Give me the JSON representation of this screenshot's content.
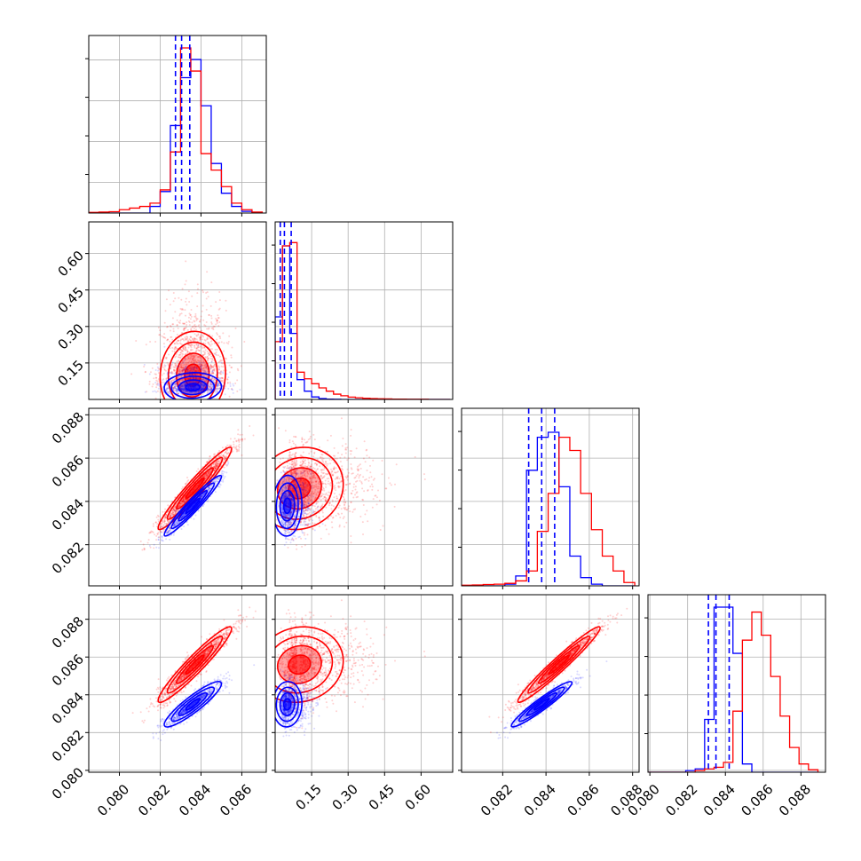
{
  "figure": {
    "description_colors": {
      "primary": "#ff0000",
      "secondary": "#0000ff",
      "grid": "#b0b0b0"
    }
  },
  "chart_data": {
    "type": "corner",
    "series": [
      {
        "name": "",
        "color": "#ff0000"
      },
      {
        "name": "",
        "color": "#0000ff"
      }
    ],
    "parameters": [
      {
        "index": 0,
        "range": [
          0.0785,
          0.0872
        ],
        "ticks": [
          "0.080",
          "0.082",
          "0.084",
          "0.086"
        ],
        "hist": {
          "bins": [
            0.0785,
            0.079,
            0.0795,
            0.08,
            0.0805,
            0.081,
            0.0815,
            0.082,
            0.0825,
            0.083,
            0.0835,
            0.084,
            0.0845,
            0.085,
            0.0855,
            0.086,
            0.0865,
            0.087
          ],
          "red": [
            0.004,
            0.006,
            0.008,
            0.02,
            0.03,
            0.04,
            0.06,
            0.14,
            0.37,
            1.0,
            0.86,
            0.36,
            0.26,
            0.16,
            0.06,
            0.02,
            0.006
          ],
          "blue": [
            0.0,
            0.0,
            0.0,
            0.0,
            0.0,
            0.0,
            0.04,
            0.13,
            0.53,
            0.82,
            0.93,
            0.65,
            0.3,
            0.12,
            0.04,
            0.01,
            0.0
          ],
          "quantiles": [
            0.08275,
            0.08305,
            0.08345
          ]
        }
      },
      {
        "index": 1,
        "range": [
          0.0,
          0.73
        ],
        "ticks": [
          "0.15",
          "0.30",
          "0.45",
          "0.60"
        ],
        "hist": {
          "bins": [
            0.0,
            0.03,
            0.06,
            0.09,
            0.12,
            0.15,
            0.18,
            0.21,
            0.24,
            0.27,
            0.3,
            0.33,
            0.36,
            0.39,
            0.42,
            0.45,
            0.48,
            0.51,
            0.54,
            0.57,
            0.6,
            0.63,
            0.66,
            0.69,
            0.72
          ],
          "red": [
            0.35,
            0.93,
            0.95,
            0.165,
            0.125,
            0.095,
            0.07,
            0.05,
            0.032,
            0.022,
            0.014,
            0.01,
            0.007,
            0.005,
            0.004,
            0.003,
            0.002,
            0.002,
            0.001,
            0.001,
            0.001,
            0.0,
            0.0,
            0.0
          ],
          "blue": [
            0.5,
            0.93,
            0.4,
            0.12,
            0.05,
            0.015,
            0.005,
            0.002,
            0.001,
            0.0,
            0.0,
            0.0,
            0.0,
            0.0,
            0.0,
            0.0,
            0.0,
            0.0,
            0.0,
            0.0,
            0.0,
            0.0,
            0.0,
            0.0
          ],
          "quantiles": [
            0.021,
            0.038,
            0.066
          ]
        }
      },
      {
        "index": 2,
        "range": [
          0.0801,
          0.0883
        ],
        "ticks": [
          "0.082",
          "0.084",
          "0.086",
          "0.088"
        ],
        "hist": {
          "bins": [
            0.0801,
            0.0806,
            0.0811,
            0.0816,
            0.0821,
            0.0826,
            0.0831,
            0.0836,
            0.0841,
            0.0846,
            0.0851,
            0.0856,
            0.0861,
            0.0866,
            0.0871,
            0.0876,
            0.0881
          ],
          "red": [
            0.004,
            0.005,
            0.008,
            0.01,
            0.015,
            0.03,
            0.09,
            0.33,
            0.56,
            0.9,
            0.82,
            0.56,
            0.34,
            0.18,
            0.09,
            0.02
          ],
          "blue": [
            0.0,
            0.0,
            0.0,
            0.0,
            0.01,
            0.06,
            0.7,
            0.9,
            0.93,
            0.6,
            0.18,
            0.05,
            0.01,
            0.0,
            0.0,
            0.0
          ],
          "quantiles": [
            0.0832,
            0.0838,
            0.0844
          ]
        }
      },
      {
        "index": 3,
        "range": [
          0.0799,
          0.0893
        ],
        "ticks": [
          "0.080",
          "0.082",
          "0.084",
          "0.086",
          "0.088"
        ],
        "hist": {
          "bins": [
            0.0799,
            0.0804,
            0.0809,
            0.0814,
            0.0819,
            0.0824,
            0.0829,
            0.0834,
            0.0839,
            0.0844,
            0.0849,
            0.0854,
            0.0859,
            0.0864,
            0.0869,
            0.0874,
            0.0879,
            0.0884,
            0.0889
          ],
          "red": [
            0.0,
            0.0,
            0.0,
            0.0,
            0.0,
            0.01,
            0.02,
            0.03,
            0.06,
            0.37,
            0.8,
            0.97,
            0.83,
            0.58,
            0.34,
            0.15,
            0.05,
            0.015
          ],
          "blue": [
            0.0,
            0.0,
            0.0,
            0.0,
            0.01,
            0.02,
            0.32,
            1.0,
            1.0,
            0.72,
            0.05,
            0.0,
            0.0,
            0.0,
            0.0,
            0.0,
            0.0,
            0.0
          ],
          "quantiles": [
            0.0831,
            0.0835,
            0.0842
          ]
        }
      }
    ],
    "pairs": [
      {
        "row": 1,
        "col": 0,
        "red": {
          "cx": 0.0836,
          "cy": 0.1,
          "sx": 0.0008,
          "sy": 0.09,
          "rho": 0.05,
          "skew_y": true
        },
        "blue": {
          "cx": 0.0836,
          "cy": 0.05,
          "sx": 0.0007,
          "sy": 0.03,
          "rho": 0.05,
          "skew_y": true
        }
      },
      {
        "row": 2,
        "col": 0,
        "red": {
          "cx": 0.0837,
          "cy": 0.0846,
          "sx": 0.0009,
          "sy": 0.00095,
          "rho": 0.96
        },
        "blue": {
          "cx": 0.0836,
          "cy": 0.0838,
          "sx": 0.0007,
          "sy": 0.0007,
          "rho": 0.96
        }
      },
      {
        "row": 2,
        "col": 1,
        "red": {
          "cx": 0.1,
          "cy": 0.0846,
          "sx": 0.09,
          "sy": 0.00095,
          "rho": 0.1,
          "skew_x": true
        },
        "blue": {
          "cx": 0.05,
          "cy": 0.0838,
          "sx": 0.03,
          "sy": 0.0007,
          "rho": 0.05,
          "skew_x": true
        }
      },
      {
        "row": 3,
        "col": 0,
        "red": {
          "cx": 0.0837,
          "cy": 0.0856,
          "sx": 0.0009,
          "sy": 0.001,
          "rho": 0.95
        },
        "blue": {
          "cx": 0.0836,
          "cy": 0.0835,
          "sx": 0.0007,
          "sy": 0.0006,
          "rho": 0.9
        }
      },
      {
        "row": 3,
        "col": 1,
        "red": {
          "cx": 0.1,
          "cy": 0.0856,
          "sx": 0.09,
          "sy": 0.001,
          "rho": 0.1,
          "skew_x": true
        },
        "blue": {
          "cx": 0.05,
          "cy": 0.0835,
          "sx": 0.03,
          "sy": 0.0006,
          "rho": 0.05,
          "skew_x": true
        }
      },
      {
        "row": 3,
        "col": 2,
        "red": {
          "cx": 0.0846,
          "cy": 0.0856,
          "sx": 0.00095,
          "sy": 0.001,
          "rho": 0.97
        },
        "blue": {
          "cx": 0.0838,
          "cy": 0.0835,
          "sx": 0.0007,
          "sy": 0.0006,
          "rho": 0.95
        }
      }
    ],
    "grid": true,
    "legend": "none",
    "title": "",
    "xlabel": "",
    "ylabel": ""
  }
}
